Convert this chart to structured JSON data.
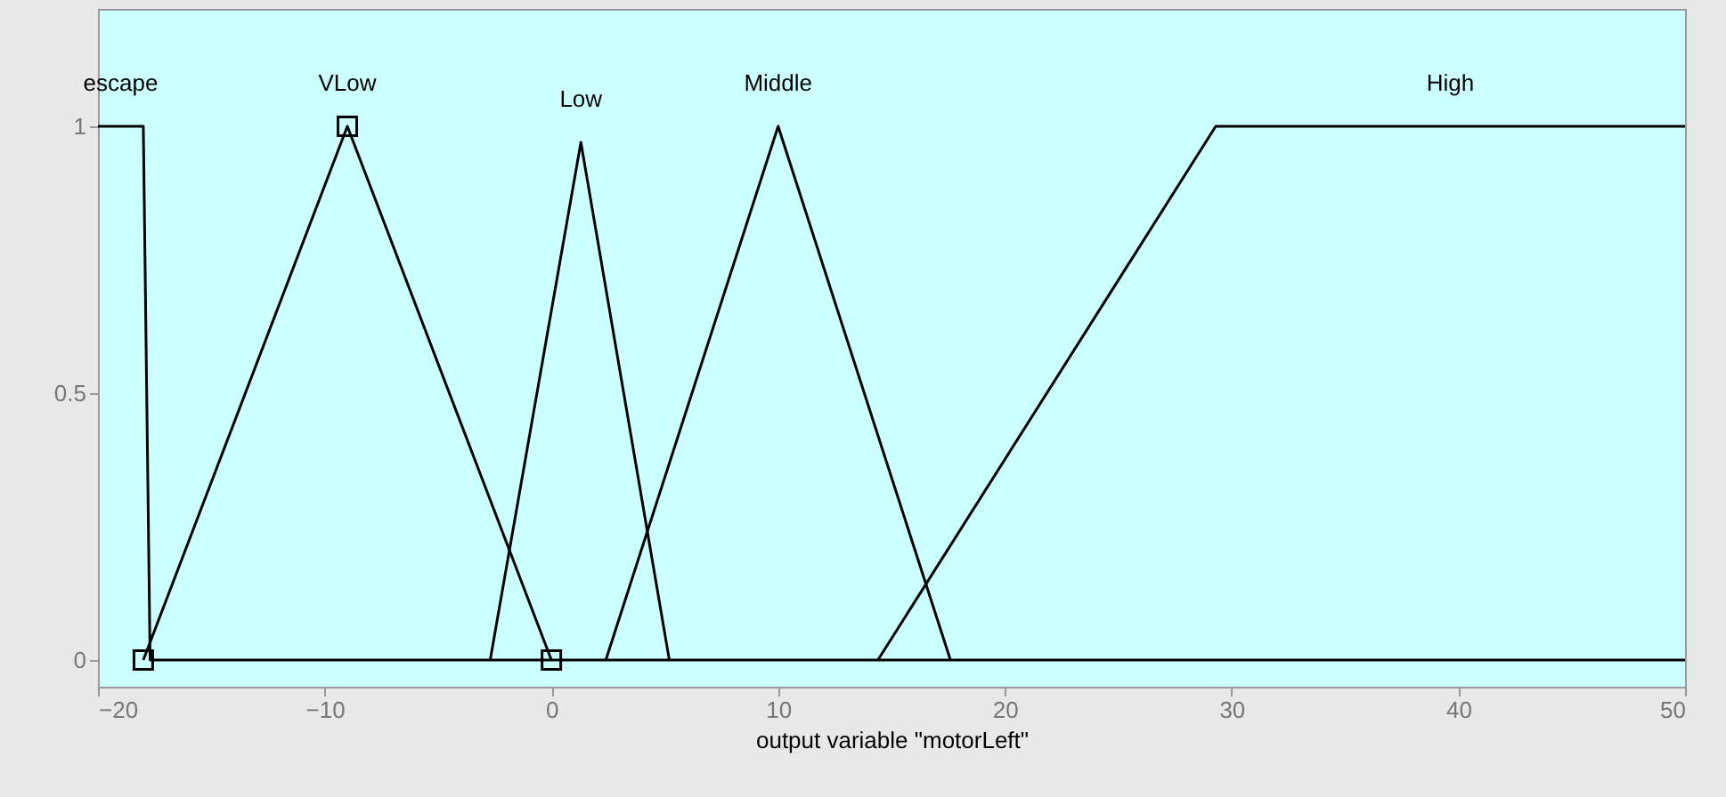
{
  "chart_data": {
    "type": "line",
    "xlabel": "output variable \"motorLeft\"",
    "xlim": [
      -20,
      50
    ],
    "xticks": [
      -20,
      -10,
      0,
      10,
      20,
      30,
      40,
      50
    ],
    "ylim": [
      -0.05,
      1.22
    ],
    "yticks": [
      0,
      0.5,
      1
    ],
    "grid": false,
    "line_style": "solid",
    "series": [
      {
        "name": "escape",
        "color": "#000000",
        "x": [
          -20,
          -18,
          -17.7,
          50
        ],
        "values": [
          1,
          1,
          0,
          0
        ]
      },
      {
        "name": "VLow",
        "color": "#000000",
        "marker": "square",
        "x": [
          -18,
          -9,
          0
        ],
        "values": [
          0,
          1,
          0
        ]
      },
      {
        "name": "Low",
        "color": "#000000",
        "x": [
          -2.7,
          1.3,
          5.2
        ],
        "values": [
          0,
          0.97,
          0
        ]
      },
      {
        "name": "Middle",
        "color": "#000000",
        "x": [
          2.4,
          10,
          17.6
        ],
        "values": [
          0,
          1,
          0
        ]
      },
      {
        "name": "High",
        "color": "#000000",
        "x": [
          14.4,
          29.3,
          50
        ],
        "values": [
          0,
          1,
          1
        ]
      }
    ]
  }
}
